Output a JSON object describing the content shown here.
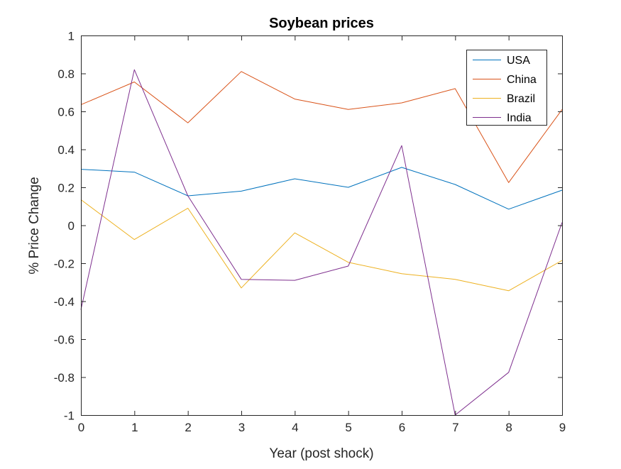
{
  "chart_data": {
    "type": "line",
    "title": "Soybean prices",
    "xlabel": "Year (post shock)",
    "ylabel": "% Price Change",
    "xlim": [
      0,
      9
    ],
    "ylim": [
      -1,
      1
    ],
    "xticks": [
      "0",
      "1",
      "2",
      "3",
      "4",
      "5",
      "6",
      "7",
      "8",
      "9"
    ],
    "yticks": [
      "-1",
      "-0.8",
      "-0.6",
      "-0.4",
      "-0.2",
      "0",
      "0.2",
      "0.4",
      "0.6",
      "0.8",
      "1"
    ],
    "grid": false,
    "legend_position": "top-right",
    "x": [
      0,
      1,
      2,
      3,
      4,
      5,
      6,
      7,
      8,
      9
    ],
    "series": [
      {
        "name": "USA",
        "color": "#0072BD",
        "values": [
          0.295,
          0.28,
          0.155,
          0.18,
          0.245,
          0.2,
          0.305,
          0.215,
          0.085,
          0.185
        ]
      },
      {
        "name": "China",
        "color": "#D95319",
        "values": [
          0.635,
          0.755,
          0.54,
          0.81,
          0.665,
          0.61,
          0.645,
          0.72,
          0.225,
          0.61
        ]
      },
      {
        "name": "Brazil",
        "color": "#EDB120",
        "values": [
          0.135,
          -0.075,
          0.09,
          -0.33,
          -0.04,
          -0.195,
          -0.255,
          -0.285,
          -0.345,
          -0.185
        ]
      },
      {
        "name": "India",
        "color": "#7E2F8E",
        "values": [
          -0.445,
          0.82,
          0.155,
          -0.285,
          -0.29,
          -0.215,
          0.42,
          -1.0,
          -0.775,
          0.015
        ]
      }
    ]
  }
}
